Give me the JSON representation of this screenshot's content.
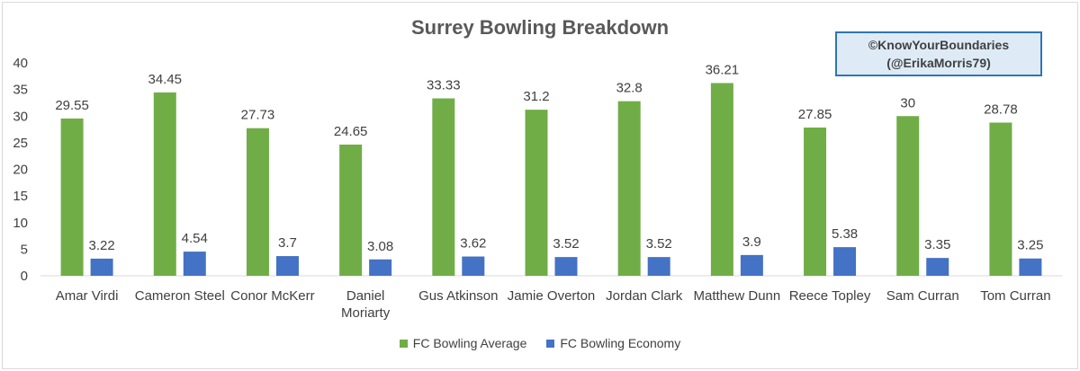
{
  "chart_data": {
    "type": "bar",
    "title": "Surrey Bowling Breakdown",
    "watermark": [
      "©KnowYourBoundaries",
      "(@ErikaMorris79)"
    ],
    "categories": [
      [
        "Amar Virdi"
      ],
      [
        "Cameron Steel"
      ],
      [
        "Conor McKerr"
      ],
      [
        "Daniel",
        "Moriarty"
      ],
      [
        "Gus Atkinson"
      ],
      [
        "Jamie Overton"
      ],
      [
        "Jordan Clark"
      ],
      [
        "Matthew Dunn"
      ],
      [
        "Reece Topley"
      ],
      [
        "Sam Curran"
      ],
      [
        "Tom Curran"
      ]
    ],
    "series": [
      {
        "name": "FC Bowling Average",
        "color": "#70ad47",
        "values": [
          29.55,
          34.45,
          27.73,
          24.65,
          33.33,
          31.2,
          32.8,
          36.21,
          27.85,
          30,
          28.78
        ]
      },
      {
        "name": "FC Bowling Economy",
        "color": "#4472c4",
        "values": [
          3.22,
          4.54,
          3.7,
          3.08,
          3.62,
          3.52,
          3.52,
          3.9,
          5.38,
          3.35,
          3.25
        ]
      }
    ],
    "ylim": [
      0,
      40
    ],
    "yticks": [
      0,
      5,
      10,
      15,
      20,
      25,
      30,
      35,
      40
    ],
    "grid": false,
    "legend": "bottom"
  }
}
